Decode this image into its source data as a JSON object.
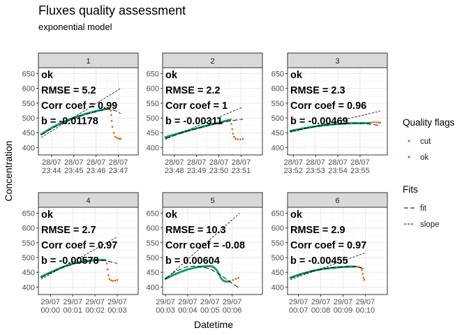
{
  "chart_data": {
    "type": "scatter",
    "title": "Fluxes quality assessment",
    "subtitle": "exponential model",
    "xlabel": "Datetime",
    "ylabel": "Concentration",
    "ylim": [
      375,
      670
    ],
    "yticks": [
      400,
      450,
      500,
      550,
      600,
      650
    ],
    "grid": true,
    "legend_position": "right",
    "colors": {
      "cut": "#D55E00",
      "ok": "#009E73",
      "fit": "#000000",
      "slope": "#000000"
    },
    "legends": [
      {
        "title": "Quality flags",
        "entries": [
          {
            "label": "cut",
            "kind": "point",
            "color": "#D55E00"
          },
          {
            "label": "ok",
            "kind": "point",
            "color": "#009E73"
          }
        ]
      },
      {
        "title": "Fits",
        "entries": [
          {
            "label": "fit",
            "kind": "longdash"
          },
          {
            "label": "slope",
            "kind": "dash"
          }
        ]
      }
    ],
    "panels": [
      {
        "strip": "1",
        "xlim": [
          0,
          254
        ],
        "xticks": [
          {
            "label": "28/07\n23:44",
            "t": 28
          },
          {
            "label": "28/07\n23:45",
            "t": 88
          },
          {
            "label": "28/07\n23:46",
            "t": 148
          },
          {
            "label": "28/07\n23:47",
            "t": 208
          }
        ],
        "annotations": [
          "ok",
          "RMSE = 5.2",
          "Corr coef = 0.99",
          "b = -0.01178"
        ],
        "ok_points": [
          [
            0,
            445
          ],
          [
            30,
            468
          ],
          [
            60,
            487
          ],
          [
            90,
            502
          ],
          [
            120,
            514
          ],
          [
            150,
            524
          ],
          [
            176,
            531
          ]
        ],
        "cut_points": [
          [
            178,
            533
          ],
          [
            183,
            531
          ],
          [
            188,
            525
          ],
          [
            189,
            510
          ],
          [
            190,
            490
          ],
          [
            192,
            470
          ],
          [
            196,
            450
          ],
          [
            200,
            436
          ],
          [
            205,
            432
          ],
          [
            210,
            430
          ],
          [
            214,
            430
          ]
        ],
        "fit": [
          [
            0,
            442
          ],
          [
            30,
            465
          ],
          [
            60,
            484
          ],
          [
            90,
            499
          ],
          [
            120,
            512
          ],
          [
            150,
            522
          ],
          [
            176,
            529
          ],
          [
            190,
            529
          ],
          [
            205,
            522
          ],
          [
            214,
            515
          ]
        ],
        "slope": [
          [
            0,
            434
          ],
          [
            214,
            600
          ]
        ]
      },
      {
        "strip": "2",
        "xlim": [
          0,
          254
        ],
        "xticks": [
          {
            "label": "28/07\n23:48",
            "t": 24
          },
          {
            "label": "28/07\n23:49",
            "t": 84
          },
          {
            "label": "28/07\n23:50",
            "t": 144
          },
          {
            "label": "28/07\n23:51",
            "t": 204
          }
        ],
        "annotations": [
          "ok",
          "RMSE = 2.2",
          "Corr coef = 1",
          "b = -0.00311"
        ],
        "ok_points": [
          [
            0,
            435
          ],
          [
            30,
            446
          ],
          [
            60,
            457
          ],
          [
            90,
            467
          ],
          [
            120,
            477
          ],
          [
            150,
            486
          ],
          [
            174,
            494
          ]
        ],
        "cut_points": [
          [
            176,
            495
          ],
          [
            178,
            480
          ],
          [
            180,
            462
          ],
          [
            182,
            447
          ],
          [
            185,
            436
          ],
          [
            189,
            430
          ],
          [
            195,
            428
          ],
          [
            202,
            428
          ],
          [
            209,
            429
          ]
        ],
        "fit": [
          [
            0,
            431
          ],
          [
            30,
            443
          ],
          [
            60,
            455
          ],
          [
            90,
            466
          ],
          [
            120,
            476
          ],
          [
            150,
            484
          ],
          [
            175,
            490
          ],
          [
            190,
            493
          ],
          [
            209,
            496
          ]
        ],
        "slope": [
          [
            0,
            428
          ],
          [
            209,
            537
          ]
        ]
      },
      {
        "strip": "3",
        "xlim": [
          0,
          254
        ],
        "xticks": [
          {
            "label": "28/07\n23:52",
            "t": 8
          },
          {
            "label": "28/07\n23:53",
            "t": 68
          },
          {
            "label": "28/07\n23:54",
            "t": 128
          },
          {
            "label": "28/07\n23:55",
            "t": 188
          }
        ],
        "annotations": [
          "ok",
          "RMSE = 2.3",
          "Corr coef = 0.96",
          "b = -0.00469"
        ],
        "ok_points": [
          [
            0,
            456
          ],
          [
            40,
            466
          ],
          [
            80,
            474
          ],
          [
            120,
            479
          ],
          [
            160,
            482
          ],
          [
            200,
            483
          ],
          [
            213,
            483
          ]
        ],
        "cut_points": [
          [
            215,
            484
          ],
          [
            220,
            485
          ],
          [
            226,
            486
          ],
          [
            232,
            485
          ],
          [
            238,
            485
          ],
          [
            242,
            484
          ]
        ],
        "fit": [
          [
            0,
            455
          ],
          [
            40,
            465
          ],
          [
            80,
            473
          ],
          [
            120,
            479
          ],
          [
            160,
            482
          ],
          [
            200,
            481
          ],
          [
            242,
            475
          ]
        ],
        "slope": [
          [
            0,
            452
          ],
          [
            242,
            523
          ]
        ]
      },
      {
        "strip": "4",
        "xlim": [
          0,
          254
        ],
        "xticks": [
          {
            "label": "29/07\n00:00",
            "t": 25
          },
          {
            "label": "29/07\n00:01",
            "t": 85
          },
          {
            "label": "29/07\n00:02",
            "t": 145
          },
          {
            "label": "29/07\n00:03",
            "t": 205
          }
        ],
        "annotations": [
          "ok",
          "RMSE = 2.7",
          "Corr coef = 0.97",
          "b = -0.00578"
        ],
        "ok_points": [
          [
            0,
            435
          ],
          [
            30,
            453
          ],
          [
            60,
            469
          ],
          [
            90,
            481
          ],
          [
            120,
            488
          ],
          [
            150,
            492
          ],
          [
            172,
            492
          ]
        ],
        "cut_points": [
          [
            174,
            491
          ],
          [
            177,
            480
          ],
          [
            179,
            460
          ],
          [
            181,
            440
          ],
          [
            184,
            428
          ],
          [
            188,
            423
          ],
          [
            193,
            421
          ],
          [
            199,
            422
          ],
          [
            205,
            424
          ]
        ],
        "fit": [
          [
            0,
            432
          ],
          [
            30,
            451
          ],
          [
            60,
            467
          ],
          [
            90,
            480
          ],
          [
            120,
            487
          ],
          [
            150,
            490
          ],
          [
            175,
            489
          ],
          [
            190,
            485
          ],
          [
            205,
            480
          ]
        ],
        "slope": [
          [
            0,
            427
          ],
          [
            205,
            570
          ]
        ]
      },
      {
        "strip": "5",
        "xlim": [
          0,
          254
        ],
        "xticks": [
          {
            "label": "29/07\n00:03",
            "t": 0
          },
          {
            "label": "29/07\n00:04",
            "t": 60
          },
          {
            "label": "29/07\n00:05",
            "t": 120
          },
          {
            "label": "29/07\n00:06",
            "t": 180
          }
        ],
        "annotations": [
          "ok",
          "RMSE = 10.3",
          "Corr coef = -0.08",
          "b = 0.00604"
        ],
        "ok_points": [
          [
            0,
            428
          ],
          [
            20,
            440
          ],
          [
            40,
            451
          ],
          [
            60,
            460
          ],
          [
            80,
            466
          ],
          [
            100,
            470
          ],
          [
            120,
            471
          ],
          [
            126,
            470
          ],
          [
            132,
            466
          ],
          [
            138,
            458
          ],
          [
            144,
            445
          ],
          [
            150,
            430
          ],
          [
            156,
            422
          ],
          [
            162,
            419
          ],
          [
            168,
            419
          ],
          [
            172,
            419
          ]
        ],
        "cut_points": [
          [
            174,
            420
          ],
          [
            182,
            424
          ],
          [
            190,
            428
          ],
          [
            197,
            431
          ]
        ],
        "fit": [
          [
            0,
            430
          ],
          [
            30,
            455
          ],
          [
            60,
            470
          ],
          [
            90,
            471
          ],
          [
            120,
            462
          ],
          [
            150,
            440
          ],
          [
            180,
            413
          ],
          [
            200,
            396
          ]
        ],
        "slope": [
          [
            0,
            427
          ],
          [
            200,
            650
          ]
        ]
      },
      {
        "strip": "6",
        "xlim": [
          0,
          254
        ],
        "xticks": [
          {
            "label": "29/07\n00:07",
            "t": 22
          },
          {
            "label": "29/07\n00:08",
            "t": 82
          },
          {
            "label": "29/07\n00:09",
            "t": 142
          },
          {
            "label": "29/07\n00:10",
            "t": 202
          }
        ],
        "annotations": [
          "ok",
          "RMSE = 2.9",
          "Corr coef = 0.97",
          "b = -0.00455"
        ],
        "ok_points": [
          [
            0,
            432
          ],
          [
            30,
            445
          ],
          [
            60,
            455
          ],
          [
            90,
            462
          ],
          [
            120,
            466
          ],
          [
            150,
            469
          ],
          [
            174,
            470
          ]
        ],
        "cut_points": [
          [
            176,
            470
          ],
          [
            180,
            469
          ],
          [
            185,
            468
          ],
          [
            190,
            466
          ],
          [
            193,
            458
          ],
          [
            195,
            445
          ],
          [
            197,
            432
          ],
          [
            199,
            425
          ]
        ],
        "fit": [
          [
            0,
            430
          ],
          [
            30,
            443
          ],
          [
            60,
            454
          ],
          [
            90,
            462
          ],
          [
            120,
            467
          ],
          [
            150,
            469
          ],
          [
            180,
            468
          ],
          [
            200,
            462
          ]
        ],
        "slope": [
          [
            0,
            425
          ],
          [
            200,
            515
          ]
        ]
      }
    ]
  }
}
